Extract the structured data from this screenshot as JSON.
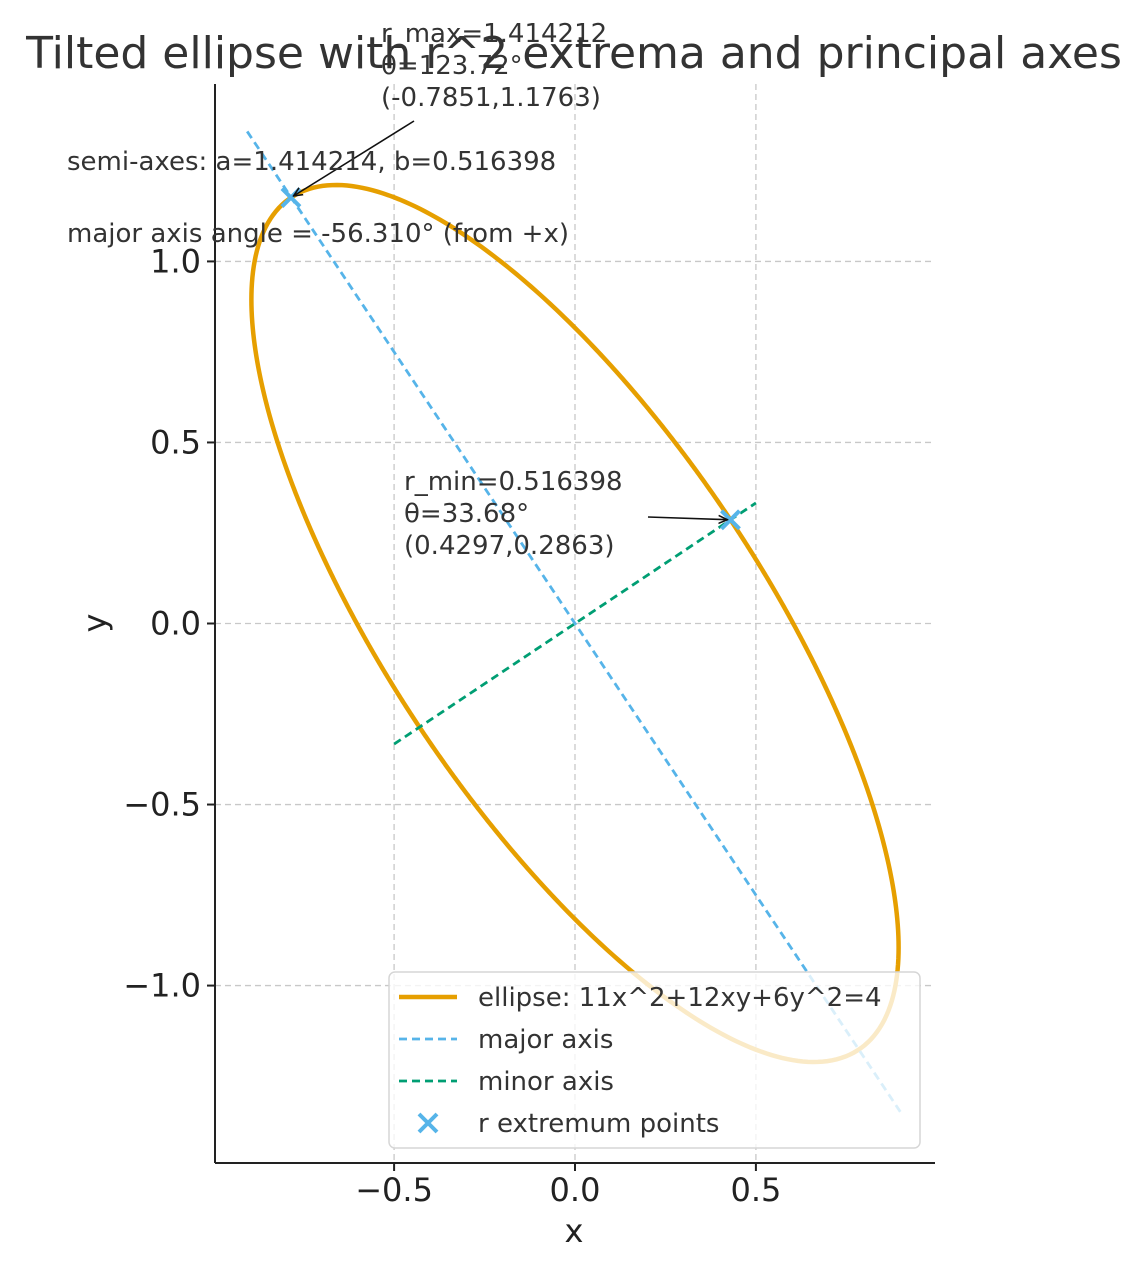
{
  "chart_data": {
    "type": "line",
    "title": "Tilted ellipse with r^2 extrema and principal axes",
    "xlabel": "x",
    "ylabel": "y",
    "xlim": [
      -0.995,
      0.995
    ],
    "ylim": [
      -1.49,
      1.49
    ],
    "x_ticks": [
      -0.5,
      0.0,
      0.5
    ],
    "x_tick_labels": [
      "−0.5",
      "0.0",
      "0.5"
    ],
    "y_ticks": [
      -1.0,
      -0.5,
      0.0,
      0.5,
      1.0
    ],
    "y_tick_labels": [
      "−1.0",
      "−0.5",
      "0.0",
      "0.5",
      "1.0"
    ],
    "grid": true,
    "legend_position": "lower-right",
    "series": [
      {
        "name": "ellipse: 11x^2+12xy+6y^2=4",
        "kind": "ellipse",
        "equation": {
          "A": 11,
          "B": 12,
          "C": 6,
          "rhs": 4
        },
        "color": "#E69F00",
        "style": "solid"
      },
      {
        "name": "major axis",
        "kind": "segment",
        "points": [
          [
            -0.906,
            1.359
          ],
          [
            0.906,
            -1.359
          ]
        ],
        "color": "#56B4E9",
        "style": "dashed"
      },
      {
        "name": "minor axis",
        "kind": "segment",
        "points": [
          [
            -0.5,
            -0.333
          ],
          [
            0.5,
            0.333
          ]
        ],
        "color": "#009E73",
        "style": "dashed"
      },
      {
        "name": "r extremum points",
        "kind": "scatter",
        "marker": "x",
        "points": [
          [
            -0.7851,
            1.1763
          ],
          [
            0.4297,
            0.2863
          ]
        ],
        "color": "#56B4E9"
      }
    ],
    "annotations": [
      {
        "lines": [
          "r_max=1.414212",
          "θ=123.72°",
          "(-0.7851,1.1763)"
        ],
        "point": [
          -0.7851,
          1.1763
        ]
      },
      {
        "lines": [
          "r_min=0.516398",
          "θ=33.68°",
          "(0.4297,0.2863)"
        ],
        "point": [
          0.4297,
          0.2863
        ]
      }
    ],
    "info_text": [
      "semi-axes: a=1.414214, b=0.516398",
      "major axis angle = -56.310° (from +x)"
    ]
  }
}
